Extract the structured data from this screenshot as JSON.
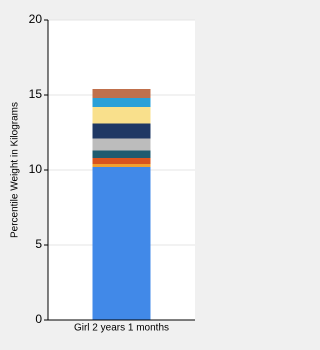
{
  "chart_data": {
    "type": "stacked_bar",
    "y_label": "Percentile Weight in Kilograms",
    "categories": [
      "Girl 2 years 1 months"
    ],
    "series": [
      {
        "color": "#4189e8",
        "values": [
          10.2
        ]
      },
      {
        "color": "#f0a030",
        "values": [
          0.2
        ]
      },
      {
        "color": "#d9541e",
        "values": [
          0.4
        ]
      },
      {
        "color": "#1e5b6f",
        "values": [
          0.5
        ]
      },
      {
        "color": "#bcbcbc",
        "values": [
          0.8
        ]
      },
      {
        "color": "#1f3864",
        "values": [
          1.0
        ]
      },
      {
        "color": "#f9e08c",
        "values": [
          1.1
        ]
      },
      {
        "color": "#2aa0d8",
        "values": [
          0.6
        ]
      },
      {
        "color": "#c0704c",
        "values": [
          0.6
        ]
      }
    ],
    "ylim": [
      0,
      20
    ],
    "yticks": [
      0,
      5,
      10,
      15,
      20
    ],
    "grid": true
  }
}
